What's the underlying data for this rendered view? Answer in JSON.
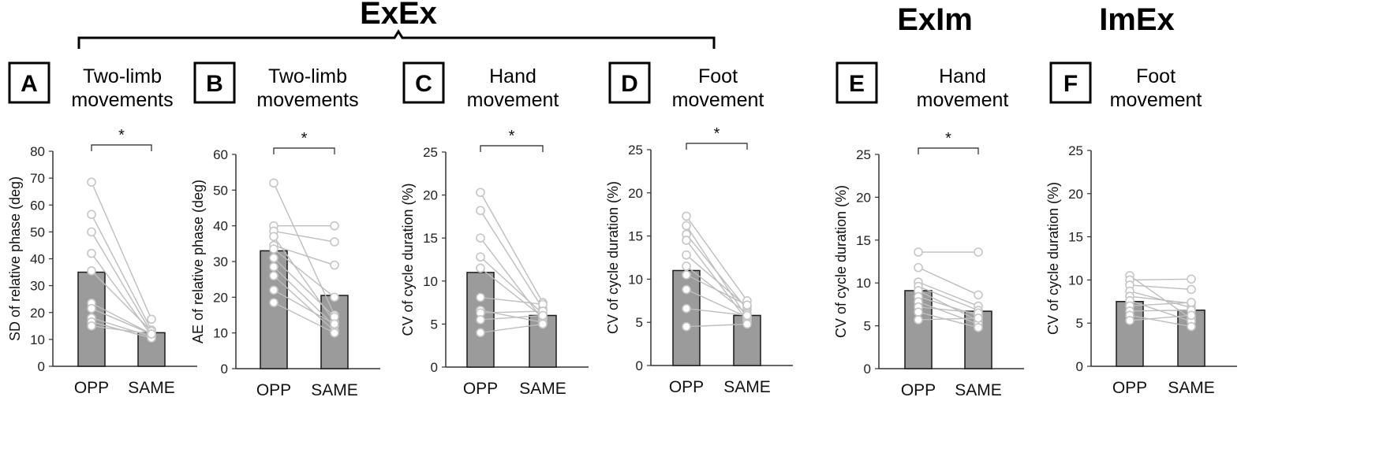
{
  "groups": [
    {
      "label": "ExEx",
      "panels": [
        "A",
        "B",
        "C",
        "D"
      ]
    },
    {
      "label": "ExIm",
      "panels": [
        "E"
      ]
    },
    {
      "label": "ImEx",
      "panels": [
        "F"
      ]
    }
  ],
  "colors": {
    "bar": "#9b9b9b",
    "bar_edge": "#1a1a1a",
    "subject_line": "#bdbdbd",
    "marker_opp": "#ffffff",
    "marker_same": "#ffffff",
    "axis": "#333333"
  },
  "chart_data": [
    {
      "panel": "A",
      "title_lines": [
        "Two-limb",
        "movements"
      ],
      "type": "bar",
      "categories": [
        "OPP",
        "SAME"
      ],
      "values": [
        35,
        12.5
      ],
      "ylabel": "SD of relative phase (deg)",
      "ylim": [
        0,
        80
      ],
      "yticks": [
        0,
        10,
        20,
        30,
        40,
        50,
        60,
        70,
        80
      ],
      "significance": "*",
      "subjects": [
        [
          68.5,
          17.5
        ],
        [
          56.5,
          13.5
        ],
        [
          50,
          12.5
        ],
        [
          42,
          11.5
        ],
        [
          35.5,
          13
        ],
        [
          23.5,
          12
        ],
        [
          21.5,
          12
        ],
        [
          18,
          11
        ],
        [
          16.5,
          10.5
        ],
        [
          15,
          12
        ]
      ]
    },
    {
      "panel": "B",
      "title_lines": [
        "Two-limb",
        "movements"
      ],
      "type": "bar",
      "categories": [
        "OPP",
        "SAME"
      ],
      "values": [
        33,
        20.5
      ],
      "ylabel": "AE of relative phase (deg)",
      "ylim": [
        0,
        60
      ],
      "yticks": [
        0,
        10,
        20,
        30,
        40,
        50,
        60
      ],
      "significance": "*",
      "subjects": [
        [
          52,
          15
        ],
        [
          40,
          40
        ],
        [
          38.5,
          35.5
        ],
        [
          37,
          13
        ],
        [
          34.5,
          29
        ],
        [
          33.5,
          20
        ],
        [
          31,
          14.5
        ],
        [
          28.5,
          12
        ],
        [
          26,
          10.5
        ],
        [
          22,
          12.5
        ],
        [
          18.5,
          10
        ]
      ]
    },
    {
      "panel": "C",
      "title_lines": [
        "Hand",
        "movement"
      ],
      "type": "bar",
      "categories": [
        "OPP",
        "SAME"
      ],
      "values": [
        11,
        6
      ],
      "ylabel": "CV of cycle duration (%)",
      "ylim": [
        0,
        25
      ],
      "yticks": [
        0,
        5,
        10,
        15,
        20,
        25
      ],
      "significance": "*",
      "subjects": [
        [
          20.3,
          7.5
        ],
        [
          18.2,
          6.8
        ],
        [
          15,
          5.5
        ],
        [
          12.8,
          6.2
        ],
        [
          11.5,
          5.8
        ],
        [
          8.1,
          7.3
        ],
        [
          6.6,
          5.2
        ],
        [
          6.3,
          6.5
        ],
        [
          5.5,
          6
        ],
        [
          4,
          5
        ]
      ]
    },
    {
      "panel": "D",
      "title_lines": [
        "Foot",
        "movement"
      ],
      "type": "bar",
      "categories": [
        "OPP",
        "SAME"
      ],
      "values": [
        11,
        5.8
      ],
      "ylabel": "CV of cycle duration (%)",
      "ylim": [
        0,
        25
      ],
      "yticks": [
        0,
        5,
        10,
        15,
        20,
        25
      ],
      "significance": "*",
      "subjects": [
        [
          17.3,
          7.5
        ],
        [
          16.2,
          5.5
        ],
        [
          15.2,
          6.5
        ],
        [
          14.5,
          5.2
        ],
        [
          12.8,
          6.8
        ],
        [
          11.5,
          6
        ],
        [
          10.5,
          7
        ],
        [
          8.8,
          5.6
        ],
        [
          6.6,
          5.8
        ],
        [
          4.5,
          4.8
        ]
      ]
    },
    {
      "panel": "E",
      "title_lines": [
        "Hand",
        "movement"
      ],
      "type": "bar",
      "categories": [
        "OPP",
        "SAME"
      ],
      "values": [
        9.1,
        6.7
      ],
      "ylabel": "CV of cycle duration (%)",
      "ylim": [
        0,
        25
      ],
      "yticks": [
        0,
        5,
        10,
        15,
        20,
        25
      ],
      "significance": "*",
      "subjects": [
        [
          13.6,
          13.6
        ],
        [
          11.8,
          8.6
        ],
        [
          10.1,
          7.3
        ],
        [
          9.6,
          6.8
        ],
        [
          9.1,
          5.6
        ],
        [
          8.4,
          6.2
        ],
        [
          7.8,
          5.2
        ],
        [
          7.2,
          6.5
        ],
        [
          6.6,
          4.8
        ],
        [
          5.7,
          5.9
        ]
      ]
    },
    {
      "panel": "F",
      "title_lines": [
        "Foot",
        "movement"
      ],
      "type": "bar",
      "categories": [
        "OPP",
        "SAME"
      ],
      "values": [
        7.5,
        6.5
      ],
      "ylabel": "CV of cycle duration (%)",
      "ylim": [
        0,
        25
      ],
      "yticks": [
        0,
        5,
        10,
        15,
        20,
        25
      ],
      "significance": "",
      "subjects": [
        [
          10.5,
          5.5
        ],
        [
          10,
          10.1
        ],
        [
          9.4,
          8.9
        ],
        [
          8.7,
          6.8
        ],
        [
          8.1,
          7.3
        ],
        [
          7.6,
          5.2
        ],
        [
          7,
          7.4
        ],
        [
          6.4,
          6.5
        ],
        [
          5.9,
          4.6
        ],
        [
          5.3,
          5.9
        ]
      ]
    }
  ]
}
